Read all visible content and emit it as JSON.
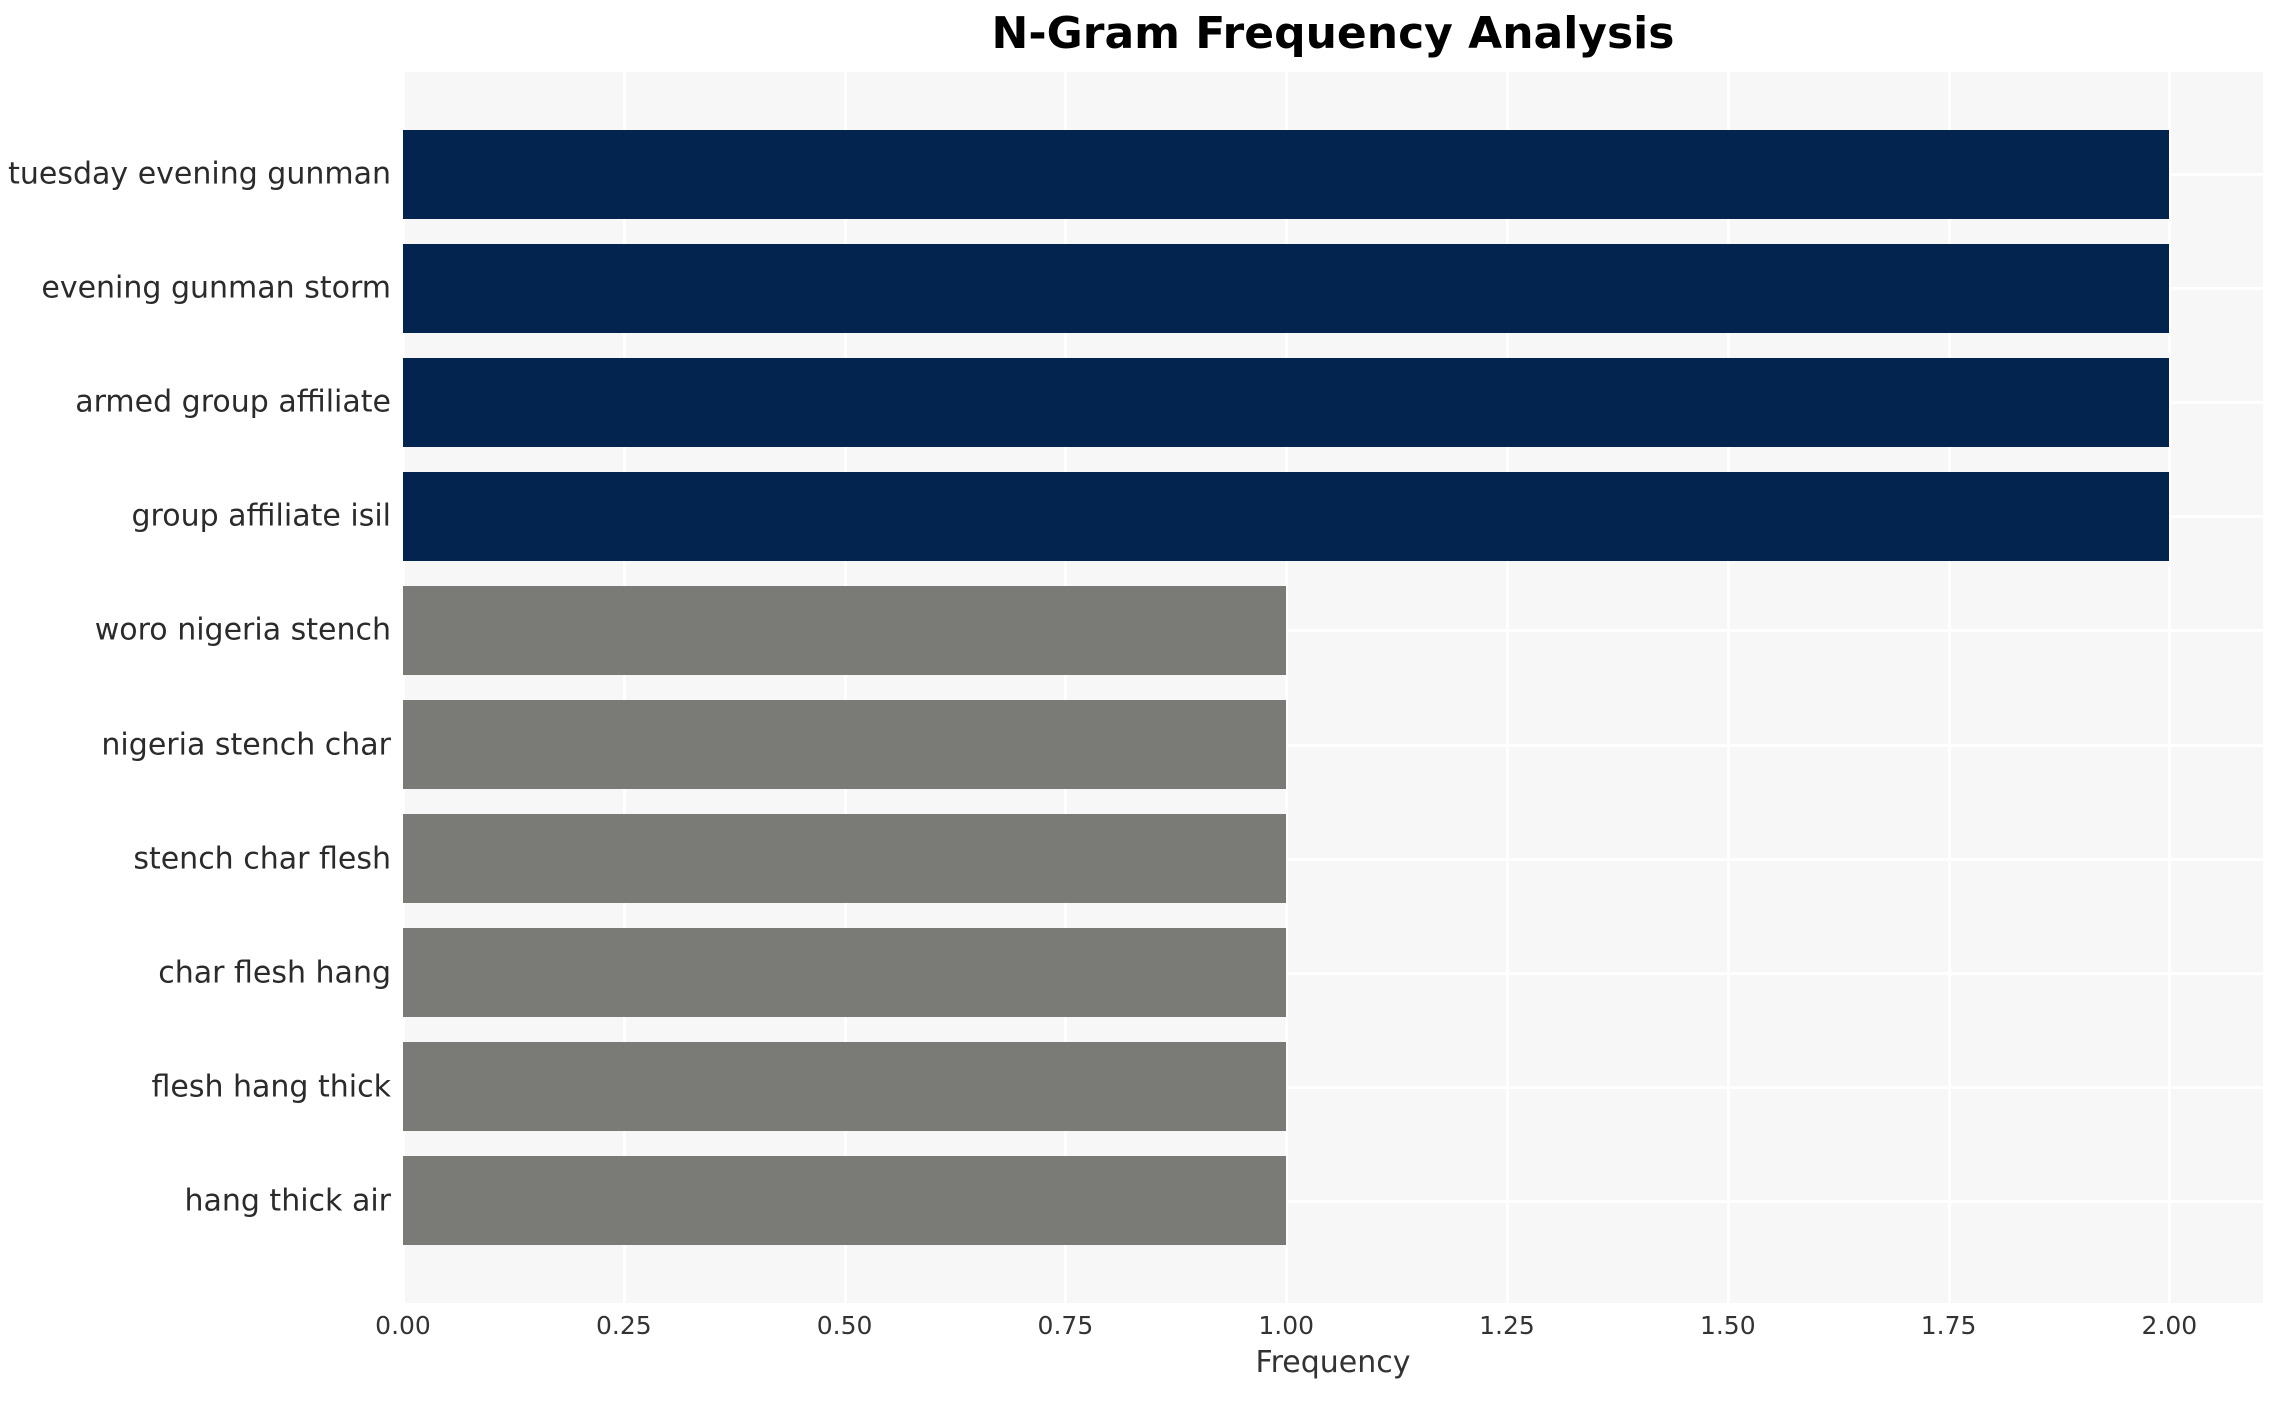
{
  "figure": {
    "title": "N-Gram Frequency Analysis"
  },
  "chart_data": {
    "type": "bar",
    "orientation": "horizontal",
    "title": "N-Gram Frequency Analysis",
    "categories": [
      "tuesday evening gunman",
      "evening gunman storm",
      "armed group affiliate",
      "group affiliate isil",
      "woro nigeria stench",
      "nigeria stench char",
      "stench char flesh",
      "char flesh hang",
      "flesh hang thick",
      "hang thick air"
    ],
    "values": [
      2,
      2,
      2,
      2,
      1,
      1,
      1,
      1,
      1,
      1
    ],
    "bar_colors": [
      "#03244e",
      "#03244e",
      "#03244e",
      "#03244e",
      "#7a7a77",
      "#7a7a77",
      "#7a7a77",
      "#7a7a77",
      "#7a7a77",
      "#7a7a77"
    ],
    "xlabel": "Frequency",
    "ylabel": "",
    "xlim": [
      0,
      2.106
    ],
    "xticks": [
      0,
      0.25,
      0.5,
      0.75,
      1.0,
      1.25,
      1.5,
      1.75,
      2.0
    ],
    "xtick_labels": [
      "0.00",
      "0.25",
      "0.50",
      "0.75",
      "1.00",
      "1.25",
      "1.50",
      "1.75",
      "2.00"
    ],
    "grid": true,
    "legend": "none",
    "plot_bg_color": "#f7f7f7",
    "grid_color": "#ffffff",
    "figure_bg_color": "#ffffff"
  }
}
